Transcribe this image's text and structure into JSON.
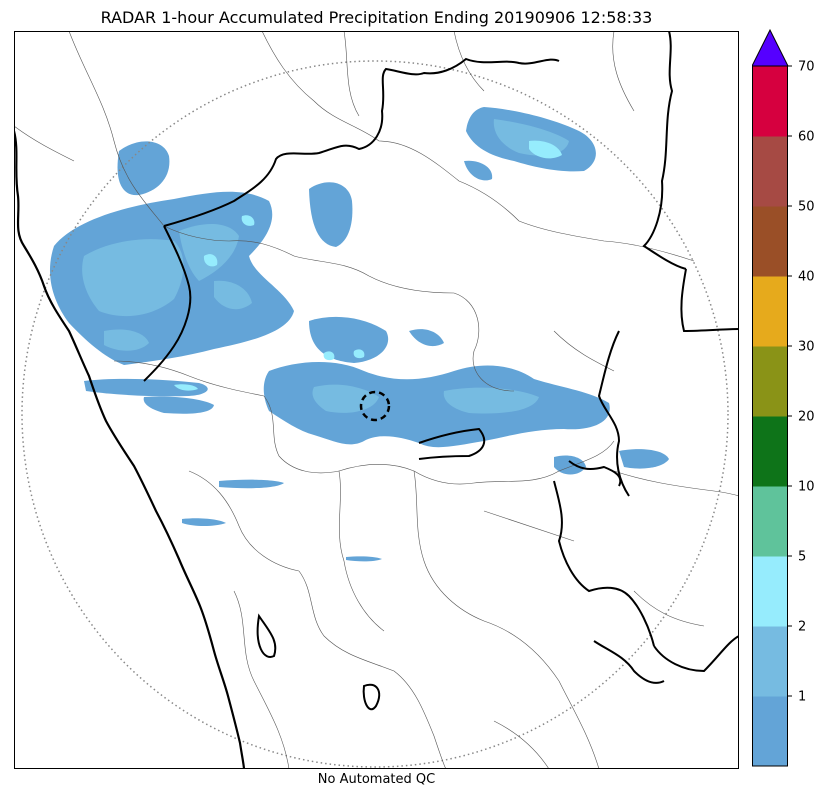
{
  "title": "RADAR 1-hour Accumulated Precipitation Ending 20190906 12:58:33",
  "footer": "No Automated QC",
  "colorbar": {
    "tick_labels": [
      "1",
      "2",
      "5",
      "10",
      "20",
      "30",
      "40",
      "50",
      "60",
      "70"
    ],
    "extend": "max",
    "colors": [
      "#63a4d7",
      "#76bbe1",
      "#96ecfd",
      "#5fc39b",
      "#0e7419",
      "#8a9317",
      "#e6aa1c",
      "#9a4f27",
      "#a64a44",
      "#d6003f",
      "#5500ff"
    ]
  },
  "chart_data": {
    "type": "heatmap",
    "title": "RADAR 1-hour Accumulated Precipitation Ending 20190906 12:58:33",
    "units_levels": [
      0,
      1,
      2,
      5,
      10,
      20,
      30,
      40,
      50,
      60,
      70
    ],
    "colorbar_ticks": [
      1,
      2,
      5,
      10,
      20,
      30,
      40,
      50,
      60,
      70
    ],
    "extend": "max",
    "observed_max_level": "2-5",
    "note_text": "No Automated QC"
  }
}
